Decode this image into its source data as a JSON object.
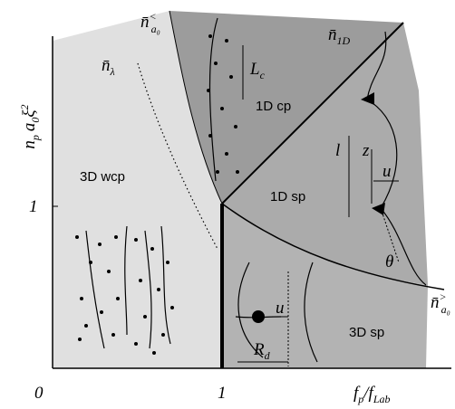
{
  "axes": {
    "y_label": [
      {
        "t": "n",
        "sub": "p"
      },
      {
        "t": "a",
        "sub": "0"
      },
      {
        "t": "ξ",
        "sup": "2"
      }
    ],
    "x_label": [
      {
        "t": "f",
        "sub": "p"
      },
      {
        "t": "/f",
        "sub": "Lab"
      }
    ],
    "x_ticks": [
      "0",
      "1"
    ],
    "y_ticks": [
      "1"
    ]
  },
  "regions": [
    "3D wcp",
    "1D cp",
    "1D sp",
    "3D sp"
  ],
  "boundaries": {
    "lower_crossover": {
      "t": "n̄",
      "sub": "a₀",
      "sup": "<"
    },
    "upper_crossover": {
      "t": "n̄",
      "sub": "a₀",
      "sup": ">"
    },
    "one_d": {
      "t": "n̄",
      "sub": "1D"
    },
    "lambda": {
      "t": "n̄",
      "sub": "λ"
    }
  },
  "symbols": {
    "correlation_length": {
      "t": "L",
      "sub": "c"
    },
    "length": "l",
    "height": "z",
    "displacement_top": "u",
    "angle": "θ",
    "displacement_bottom": "u",
    "radius": {
      "t": "R",
      "sub": "d"
    }
  }
}
